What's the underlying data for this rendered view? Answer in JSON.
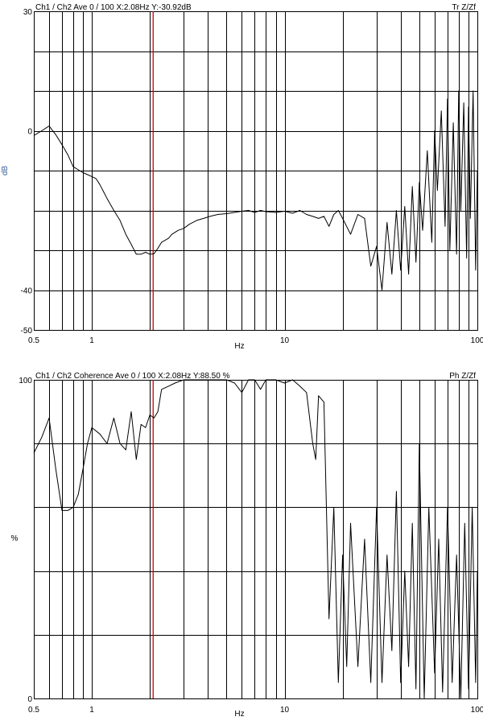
{
  "chart_data": [
    {
      "type": "line",
      "panel": "transfer",
      "header_left": "Ch1 / Ch2   Ave 0 / 100   X:2.08Hz  Y:-30.92dB",
      "header_right": "Tr Z/Zf",
      "xlabel": "Hz",
      "ylabel": "dB",
      "xscale": "log",
      "xlim": [
        0.5,
        100
      ],
      "ylim": [
        -50,
        30
      ],
      "x_ticks": [
        "0.5",
        "1",
        "10",
        "100"
      ],
      "y_ticks": [
        {
          "value": 30,
          "label": "30"
        },
        {
          "value": 0,
          "label": "0"
        },
        {
          "value": -40,
          "label": "-40"
        },
        {
          "value": -50,
          "label": "-50"
        }
      ],
      "y_grid": [
        30,
        20,
        10,
        0,
        -10,
        -20,
        -30,
        -40,
        -50
      ],
      "grid": true,
      "cursor_x": 2.08,
      "cursor_color": "#cc0000",
      "series": [
        {
          "color": "#000000",
          "x": [
            0.5,
            0.55,
            0.6,
            0.65,
            0.7,
            0.75,
            0.8,
            0.85,
            0.9,
            0.95,
            1.0,
            1.05,
            1.1,
            1.2,
            1.3,
            1.4,
            1.5,
            1.6,
            1.7,
            1.8,
            1.9,
            2.0,
            2.1,
            2.2,
            2.3,
            2.4,
            2.5,
            2.6,
            2.8,
            3.0,
            3.2,
            3.5,
            3.8,
            4.1,
            4.5,
            5.0,
            5.5,
            6.0,
            6.5,
            7.0,
            7.5,
            8.0,
            9.0,
            10.0,
            11,
            12,
            13,
            14,
            15,
            16,
            17,
            18,
            19,
            20,
            22,
            24,
            26,
            28,
            30,
            32,
            34,
            36,
            38,
            40,
            42,
            44,
            46,
            48,
            50,
            52,
            55,
            58,
            60,
            62,
            65,
            68,
            70,
            72,
            75,
            78,
            80,
            82,
            85,
            88,
            90,
            92,
            95,
            98,
            100
          ],
          "values": [
            -1.2,
            0.0,
            1.2,
            -1.0,
            -3.5,
            -6.0,
            -9.0,
            -9.8,
            -10.5,
            -11.0,
            -11.5,
            -12.0,
            -13.5,
            -17.0,
            -20.0,
            -22.5,
            -26.0,
            -28.5,
            -31.0,
            -31.0,
            -30.5,
            -31.0,
            -30.9,
            -29.5,
            -28.0,
            -27.5,
            -27.0,
            -26.0,
            -25.0,
            -24.5,
            -23.5,
            -22.5,
            -22.0,
            -21.5,
            -21.0,
            -20.8,
            -20.5,
            -20.2,
            -20.0,
            -20.5,
            -20.0,
            -20.3,
            -20.5,
            -20.2,
            -20.7,
            -20.0,
            -21.0,
            -21.5,
            -22.0,
            -21.5,
            -24.0,
            -21.0,
            -20.0,
            -22.0,
            -26.0,
            -21.0,
            -22.0,
            -34.0,
            -29.0,
            -40.0,
            -23.0,
            -36.0,
            -20.0,
            -35.0,
            -19.0,
            -36.0,
            -14.0,
            -33.0,
            -13.0,
            -25.0,
            -5.0,
            -28.0,
            0.0,
            -15.0,
            5.0,
            -24.0,
            8.0,
            -30.0,
            2.0,
            -31.0,
            10.0,
            -20.0,
            7.0,
            -32.0,
            6.0,
            -22.0,
            10.0,
            -35.0,
            -10.0
          ]
        }
      ]
    },
    {
      "type": "line",
      "panel": "coherence",
      "header_left": "Ch1 / Ch2   Coherence Ave 0 / 100   X:2.08Hz  Y:88.50 %",
      "header_right": "Ph Z/Zf",
      "xlabel": "Hz",
      "ylabel": "%",
      "xscale": "log",
      "xlim": [
        0.5,
        100
      ],
      "ylim": [
        0,
        100
      ],
      "x_ticks": [
        "0.5",
        "1",
        "10",
        "100"
      ],
      "y_ticks": [
        {
          "value": 100,
          "label": "100"
        },
        {
          "value": 0,
          "label": "0"
        }
      ],
      "y_grid": [
        100,
        80,
        60,
        40,
        20,
        0
      ],
      "grid": true,
      "cursor_x": 2.08,
      "cursor_color": "#cc0000",
      "series": [
        {
          "color": "#000000",
          "x": [
            0.5,
            0.55,
            0.6,
            0.65,
            0.7,
            0.75,
            0.8,
            0.85,
            0.9,
            0.95,
            1.0,
            1.1,
            1.2,
            1.3,
            1.4,
            1.5,
            1.6,
            1.7,
            1.8,
            1.9,
            2.0,
            2.1,
            2.2,
            2.3,
            2.5,
            2.7,
            3.0,
            3.3,
            3.6,
            4.0,
            4.5,
            5.0,
            5.5,
            6.0,
            6.5,
            7.0,
            7.5,
            8.0,
            9.0,
            10,
            11,
            12,
            13,
            14,
            14.5,
            15,
            16,
            17,
            18,
            19,
            20,
            21,
            22,
            24,
            26,
            28,
            30,
            32,
            34,
            36,
            38,
            40,
            42,
            44,
            46,
            48,
            50,
            53,
            56,
            60,
            63,
            66,
            70,
            74,
            78,
            82,
            86,
            90,
            94,
            98,
            100
          ],
          "values": [
            77,
            82,
            88,
            72,
            59,
            59,
            60,
            64,
            72,
            80,
            85,
            83,
            80,
            88,
            80,
            78,
            90,
            75,
            86,
            85,
            89,
            88,
            90,
            97,
            98,
            99,
            100,
            100,
            100,
            100,
            100,
            100,
            99,
            96,
            100,
            100,
            97,
            100,
            100,
            99,
            100,
            98,
            96,
            80,
            75,
            95,
            93,
            25,
            60,
            5,
            45,
            10,
            55,
            10,
            50,
            5,
            60,
            5,
            45,
            15,
            65,
            5,
            40,
            10,
            55,
            3,
            80,
            0,
            60,
            8,
            50,
            2,
            60,
            5,
            45,
            0,
            55,
            3,
            60,
            5,
            40
          ]
        }
      ]
    }
  ]
}
